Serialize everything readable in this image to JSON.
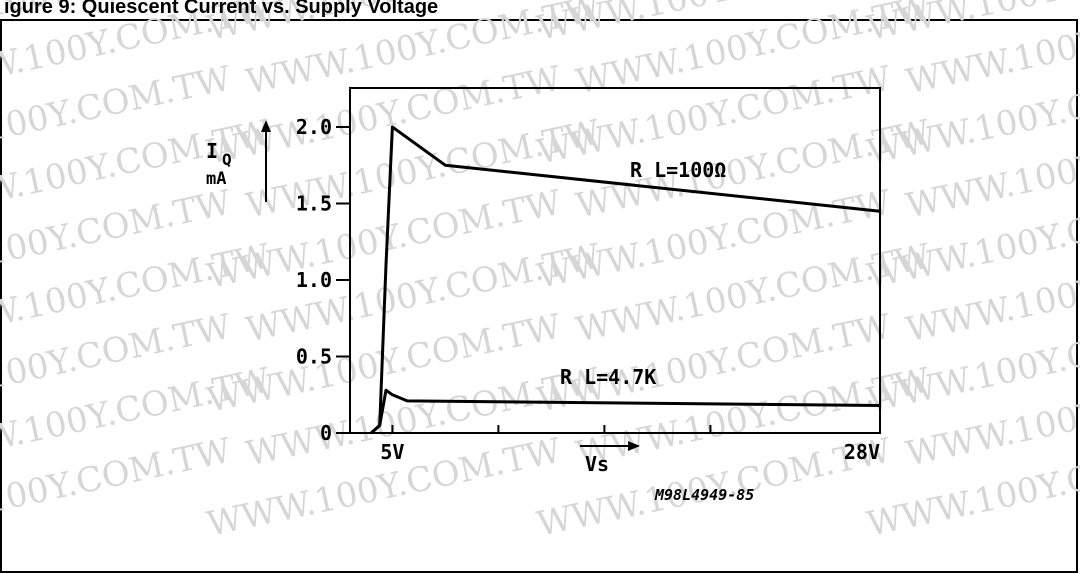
{
  "header": {
    "text": "igure 9: Quiescent Current vs. Supply Voltage"
  },
  "watermark": {
    "text": "WWW.100Y.COM.TW"
  },
  "chart_data": {
    "type": "line",
    "ylabel_main": "I",
    "ylabel_sub": "Q",
    "ylabel_unit": "mA",
    "x_range": [
      3,
      28
    ],
    "ylim": [
      0,
      2.3
    ],
    "y_ticks": [
      {
        "value": 0,
        "label": "0"
      },
      {
        "value": 0.5,
        "label": "0.5"
      },
      {
        "value": 1.0,
        "label": "1.0"
      },
      {
        "value": 1.5,
        "label": "1.5"
      },
      {
        "value": 2.0,
        "label": "2.0"
      }
    ],
    "x_ticks": [
      {
        "value": 5,
        "label": "5V"
      },
      {
        "value": 10,
        "label": ""
      },
      {
        "value": 15,
        "label": ""
      },
      {
        "value": 20,
        "label": ""
      },
      {
        "value": 28,
        "label": "28V"
      }
    ],
    "xlabel": "Vs",
    "figure_code": "M98L4949-85",
    "grid": false,
    "series": [
      {
        "name": "R L=100Ω",
        "x": [
          4.0,
          4.4,
          4.7,
          5.0,
          7.5,
          28.0
        ],
        "y": [
          0.0,
          0.05,
          1.1,
          2.0,
          1.75,
          1.45
        ]
      },
      {
        "name": "R L=4.7K",
        "x": [
          4.0,
          4.4,
          4.7,
          5.0,
          5.7,
          28.0
        ],
        "y": [
          0.0,
          0.05,
          0.28,
          0.25,
          0.21,
          0.18
        ]
      }
    ]
  }
}
